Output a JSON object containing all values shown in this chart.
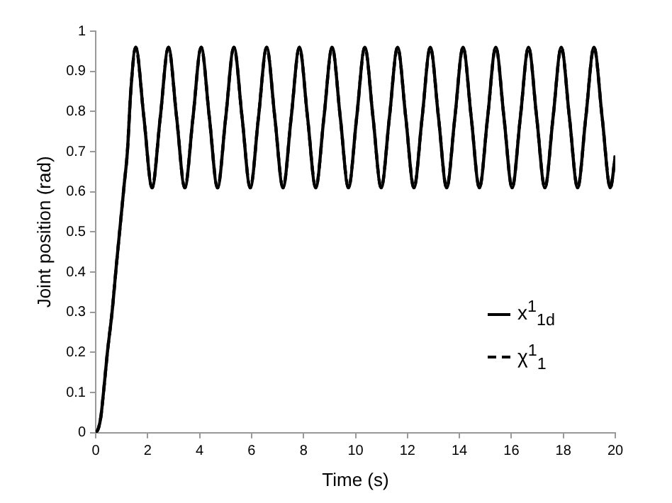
{
  "chart_data": {
    "type": "line",
    "xlabel": "Time (s)",
    "ylabel": "Joint position (rad)",
    "x": [
      0,
      0.1,
      0.2,
      0.3,
      0.45,
      0.63,
      0.8,
      0.95,
      1.1,
      1.22,
      1.35,
      1.54,
      1.855,
      2.17,
      2.485,
      2.8,
      3.115,
      3.43,
      3.745,
      4.06,
      4.375,
      4.69,
      5.005,
      5.32,
      5.635,
      5.95,
      6.265,
      6.58,
      6.895,
      7.21,
      7.525,
      7.84,
      8.155,
      8.47,
      8.785,
      9.1,
      9.415,
      9.73,
      10.045,
      10.36,
      10.675,
      10.99,
      11.305,
      11.62,
      11.935,
      12.25,
      12.565,
      12.88,
      13.195,
      13.51,
      13.825,
      14.14,
      14.455,
      14.77,
      15.085,
      15.4,
      15.715,
      16.03,
      16.345,
      16.66,
      16.975,
      17.29,
      17.605,
      17.92,
      18.235,
      18.55,
      18.865,
      19.18,
      19.495,
      19.81,
      20
    ],
    "series": [
      {
        "name": "x$^{1}$$_{1d}$",
        "color": "#000000",
        "line_style": "solid",
        "values": [
          0,
          0.01,
          0.04,
          0.1,
          0.2,
          0.3,
          0.42,
          0.52,
          0.62,
          0.7,
          0.85,
          0.96,
          0.785,
          0.61,
          0.785,
          0.96,
          0.785,
          0.61,
          0.785,
          0.96,
          0.785,
          0.61,
          0.785,
          0.96,
          0.785,
          0.61,
          0.785,
          0.96,
          0.785,
          0.61,
          0.785,
          0.96,
          0.785,
          0.61,
          0.785,
          0.96,
          0.785,
          0.61,
          0.785,
          0.96,
          0.785,
          0.61,
          0.785,
          0.96,
          0.785,
          0.61,
          0.785,
          0.96,
          0.785,
          0.61,
          0.785,
          0.96,
          0.785,
          0.61,
          0.785,
          0.96,
          0.785,
          0.61,
          0.785,
          0.96,
          0.785,
          0.61,
          0.785,
          0.96,
          0.785,
          0.61,
          0.785,
          0.96,
          0.785,
          0.61,
          0.69
        ]
      },
      {
        "name": "χ$^{1}$$_{1}$",
        "color": "#000000",
        "line_style": "dashed",
        "values": [
          0,
          0.01,
          0.04,
          0.1,
          0.2,
          0.3,
          0.42,
          0.52,
          0.62,
          0.7,
          0.85,
          0.96,
          0.785,
          0.61,
          0.785,
          0.96,
          0.785,
          0.61,
          0.785,
          0.96,
          0.785,
          0.61,
          0.785,
          0.96,
          0.785,
          0.61,
          0.785,
          0.96,
          0.785,
          0.61,
          0.785,
          0.96,
          0.785,
          0.61,
          0.785,
          0.96,
          0.785,
          0.61,
          0.785,
          0.96,
          0.785,
          0.61,
          0.785,
          0.96,
          0.785,
          0.61,
          0.785,
          0.96,
          0.785,
          0.61,
          0.785,
          0.96,
          0.785,
          0.61,
          0.785,
          0.96,
          0.785,
          0.61,
          0.785,
          0.96,
          0.785,
          0.61,
          0.785,
          0.96,
          0.785,
          0.61,
          0.785,
          0.96,
          0.785,
          0.61,
          0.69
        ]
      }
    ],
    "xlim": [
      0,
      20
    ],
    "xticks": [
      0,
      2,
      4,
      6,
      8,
      10,
      12,
      14,
      16,
      18,
      20
    ],
    "ylim": [
      0,
      1
    ],
    "yticks": [
      0,
      0.1,
      0.2,
      0.3,
      0.4,
      0.5,
      0.6,
      0.7,
      0.8,
      0.9,
      1
    ],
    "grid": false,
    "legend": "bottom right",
    "marker": "none"
  }
}
